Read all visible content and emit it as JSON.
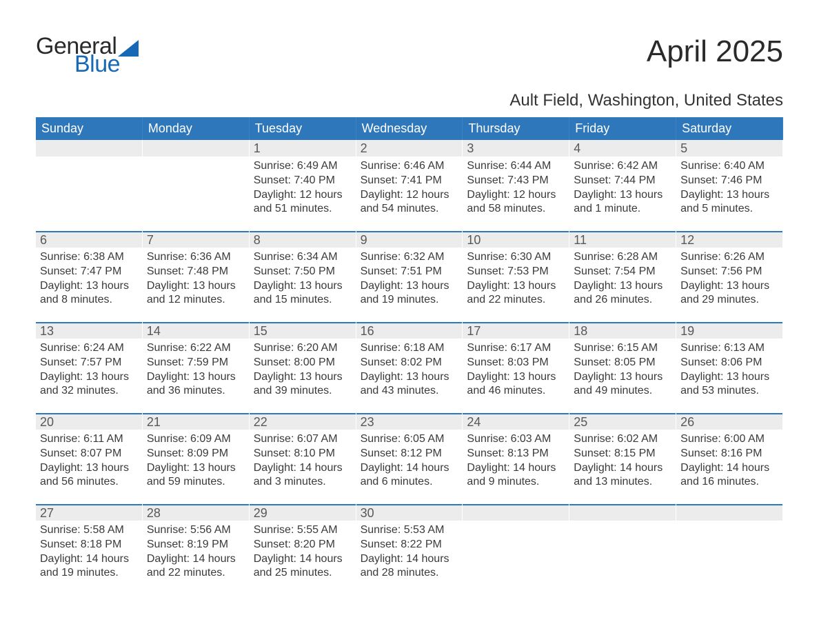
{
  "logo": {
    "general": "General",
    "blue": "Blue"
  },
  "title": "April 2025",
  "location": "Ault Field, Washington, United States",
  "colors": {
    "header_bg": "#2f77bb",
    "header_text": "#ffffff",
    "datebar_bg": "#ececec",
    "week_border": "#2f77bb",
    "logo_accent": "#1769b5",
    "body_text": "#333333"
  },
  "typography": {
    "title_fontsize": 44,
    "subtitle_fontsize": 24,
    "dayhead_fontsize": 18,
    "date_fontsize": 18,
    "body_fontsize": 16
  },
  "daynames": [
    "Sunday",
    "Monday",
    "Tuesday",
    "Wednesday",
    "Thursday",
    "Friday",
    "Saturday"
  ],
  "weeks": [
    [
      null,
      null,
      {
        "d": "1",
        "sr": "6:49 AM",
        "ss": "7:40 PM",
        "dl": "12 hours and 51 minutes."
      },
      {
        "d": "2",
        "sr": "6:46 AM",
        "ss": "7:41 PM",
        "dl": "12 hours and 54 minutes."
      },
      {
        "d": "3",
        "sr": "6:44 AM",
        "ss": "7:43 PM",
        "dl": "12 hours and 58 minutes."
      },
      {
        "d": "4",
        "sr": "6:42 AM",
        "ss": "7:44 PM",
        "dl": "13 hours and 1 minute."
      },
      {
        "d": "5",
        "sr": "6:40 AM",
        "ss": "7:46 PM",
        "dl": "13 hours and 5 minutes."
      }
    ],
    [
      {
        "d": "6",
        "sr": "6:38 AM",
        "ss": "7:47 PM",
        "dl": "13 hours and 8 minutes."
      },
      {
        "d": "7",
        "sr": "6:36 AM",
        "ss": "7:48 PM",
        "dl": "13 hours and 12 minutes."
      },
      {
        "d": "8",
        "sr": "6:34 AM",
        "ss": "7:50 PM",
        "dl": "13 hours and 15 minutes."
      },
      {
        "d": "9",
        "sr": "6:32 AM",
        "ss": "7:51 PM",
        "dl": "13 hours and 19 minutes."
      },
      {
        "d": "10",
        "sr": "6:30 AM",
        "ss": "7:53 PM",
        "dl": "13 hours and 22 minutes."
      },
      {
        "d": "11",
        "sr": "6:28 AM",
        "ss": "7:54 PM",
        "dl": "13 hours and 26 minutes."
      },
      {
        "d": "12",
        "sr": "6:26 AM",
        "ss": "7:56 PM",
        "dl": "13 hours and 29 minutes."
      }
    ],
    [
      {
        "d": "13",
        "sr": "6:24 AM",
        "ss": "7:57 PM",
        "dl": "13 hours and 32 minutes."
      },
      {
        "d": "14",
        "sr": "6:22 AM",
        "ss": "7:59 PM",
        "dl": "13 hours and 36 minutes."
      },
      {
        "d": "15",
        "sr": "6:20 AM",
        "ss": "8:00 PM",
        "dl": "13 hours and 39 minutes."
      },
      {
        "d": "16",
        "sr": "6:18 AM",
        "ss": "8:02 PM",
        "dl": "13 hours and 43 minutes."
      },
      {
        "d": "17",
        "sr": "6:17 AM",
        "ss": "8:03 PM",
        "dl": "13 hours and 46 minutes."
      },
      {
        "d": "18",
        "sr": "6:15 AM",
        "ss": "8:05 PM",
        "dl": "13 hours and 49 minutes."
      },
      {
        "d": "19",
        "sr": "6:13 AM",
        "ss": "8:06 PM",
        "dl": "13 hours and 53 minutes."
      }
    ],
    [
      {
        "d": "20",
        "sr": "6:11 AM",
        "ss": "8:07 PM",
        "dl": "13 hours and 56 minutes."
      },
      {
        "d": "21",
        "sr": "6:09 AM",
        "ss": "8:09 PM",
        "dl": "13 hours and 59 minutes."
      },
      {
        "d": "22",
        "sr": "6:07 AM",
        "ss": "8:10 PM",
        "dl": "14 hours and 3 minutes."
      },
      {
        "d": "23",
        "sr": "6:05 AM",
        "ss": "8:12 PM",
        "dl": "14 hours and 6 minutes."
      },
      {
        "d": "24",
        "sr": "6:03 AM",
        "ss": "8:13 PM",
        "dl": "14 hours and 9 minutes."
      },
      {
        "d": "25",
        "sr": "6:02 AM",
        "ss": "8:15 PM",
        "dl": "14 hours and 13 minutes."
      },
      {
        "d": "26",
        "sr": "6:00 AM",
        "ss": "8:16 PM",
        "dl": "14 hours and 16 minutes."
      }
    ],
    [
      {
        "d": "27",
        "sr": "5:58 AM",
        "ss": "8:18 PM",
        "dl": "14 hours and 19 minutes."
      },
      {
        "d": "28",
        "sr": "5:56 AM",
        "ss": "8:19 PM",
        "dl": "14 hours and 22 minutes."
      },
      {
        "d": "29",
        "sr": "5:55 AM",
        "ss": "8:20 PM",
        "dl": "14 hours and 25 minutes."
      },
      {
        "d": "30",
        "sr": "5:53 AM",
        "ss": "8:22 PM",
        "dl": "14 hours and 28 minutes."
      },
      null,
      null,
      null
    ]
  ],
  "labels": {
    "sunrise": "Sunrise: ",
    "sunset": "Sunset: ",
    "daylight": "Daylight: "
  }
}
